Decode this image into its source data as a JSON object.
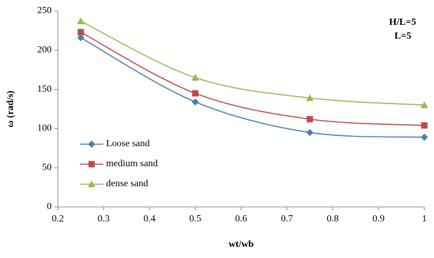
{
  "chart_data": {
    "type": "line",
    "xlabel": "wt/wb",
    "ylabel": "ω (rad/s)",
    "xlim": [
      0.2,
      1
    ],
    "ylim": [
      0,
      250
    ],
    "xticks": [
      "0.2",
      "0.3",
      "0.4",
      "0.5",
      "0.6",
      "0.7",
      "0.8",
      "0.9",
      "1"
    ],
    "yticks": [
      "0",
      "50",
      "100",
      "150",
      "200",
      "250"
    ],
    "grid": false,
    "legend_position": "bottom-left",
    "annotations": [
      "H/L=5",
      "L=5"
    ],
    "series": [
      {
        "name": "Loose sand",
        "marker": "diamond",
        "color": "#4a7ebb",
        "x": [
          0.25,
          0.5,
          0.75,
          1
        ],
        "y": [
          216,
          134,
          95,
          89
        ]
      },
      {
        "name": "medium sand",
        "marker": "square",
        "color": "#be4b48",
        "x": [
          0.25,
          0.5,
          0.75,
          1
        ],
        "y": [
          223,
          145,
          112,
          104
        ]
      },
      {
        "name": "dense sand",
        "marker": "triangle",
        "color": "#98b954",
        "x": [
          0.25,
          0.5,
          0.75,
          1
        ],
        "y": [
          237,
          165,
          139,
          130
        ]
      }
    ]
  }
}
